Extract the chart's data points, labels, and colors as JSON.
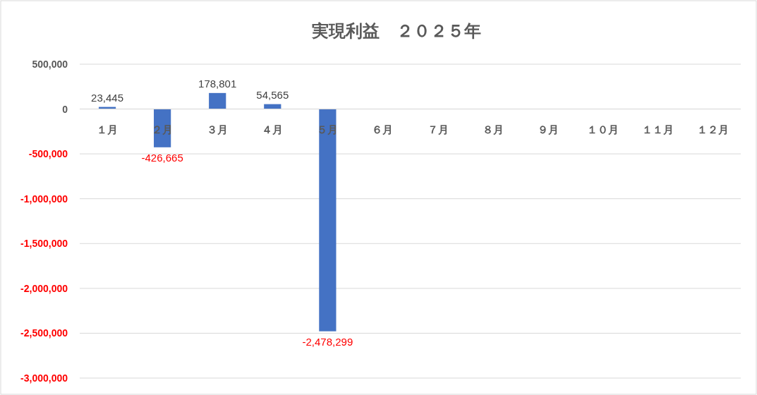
{
  "chart_data": {
    "type": "bar",
    "title": "実現利益　２０２５年",
    "categories": [
      "１月",
      "２月",
      "３月",
      "４月",
      "５月",
      "６月",
      "７月",
      "８月",
      "９月",
      "１０月",
      "１１月",
      "１２月"
    ],
    "series": [
      {
        "color": "#4472c4",
        "values": [
          23445,
          -426665,
          178801,
          54565,
          -2478299,
          null,
          null,
          null,
          null,
          null,
          null,
          null
        ],
        "value_labels": [
          "23,445",
          "-426,665",
          "178,801",
          "54,565",
          "-2,478,299",
          null,
          null,
          null,
          null,
          null,
          null,
          null
        ]
      }
    ],
    "ylim": [
      -3000000,
      500000
    ],
    "yticks": [
      {
        "value": 500000,
        "label": "500,000"
      },
      {
        "value": 0,
        "label": "0"
      },
      {
        "value": -500000,
        "label": "-500,000"
      },
      {
        "value": -1000000,
        "label": "-1,000,000"
      },
      {
        "value": -1500000,
        "label": "-1,500,000"
      },
      {
        "value": -2000000,
        "label": "-2,000,000"
      },
      {
        "value": -2500000,
        "label": "-2,500,000"
      },
      {
        "value": -3000000,
        "label": "-3,000,000"
      }
    ],
    "grid": "y"
  }
}
